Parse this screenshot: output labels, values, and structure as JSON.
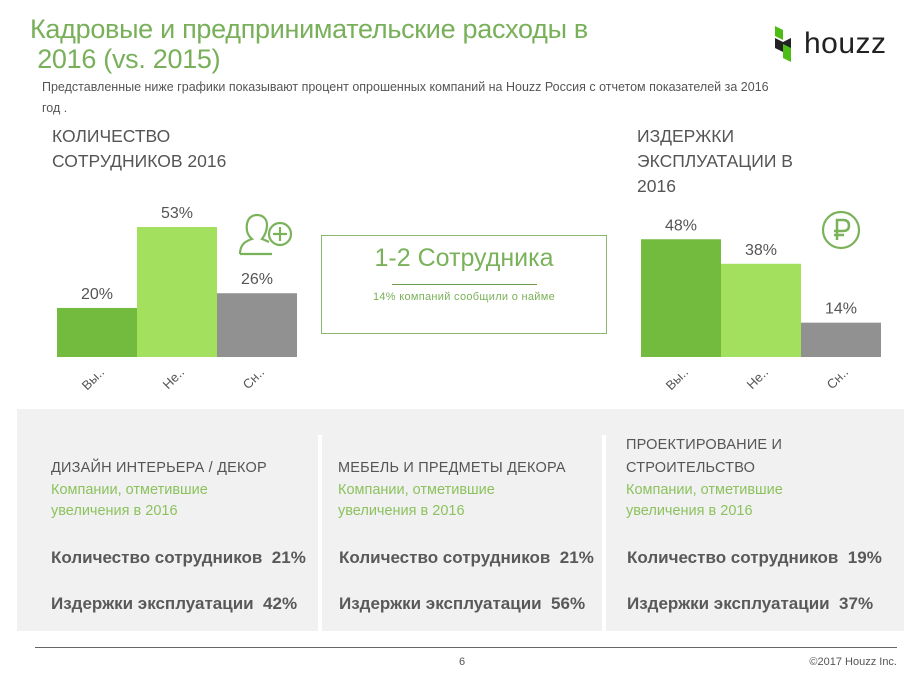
{
  "header": {
    "title_line1": "Кадровые и предпринимательские расходы в",
    "title_line2": " 2016 (vs. 2015)",
    "subtitle": "Представленные ниже графики показывают процент опрошенных компаний на Houzz Россия с отчетом показателей за 2016 год .",
    "logo_text": "houzz"
  },
  "chart_data": [
    {
      "type": "bar",
      "title": "КОЛИЧЕСТВО СОТРУДНИКОВ 2016",
      "categories": [
        "Вы..",
        "Не..",
        "Сн.."
      ],
      "values": [
        20,
        53,
        26
      ],
      "value_labels": [
        "20%",
        "53%",
        "26%"
      ],
      "colors": [
        "#72bb3e",
        "#a3e05d",
        "#919191"
      ],
      "icon": "user-add-icon",
      "ylim": [
        0,
        53
      ]
    },
    {
      "type": "bar",
      "title": "ИЗДЕРЖКИ ЭКСПЛУАТАЦИИ В 2016",
      "categories": [
        "Вы..",
        "Не..",
        "Сн.."
      ],
      "values": [
        48,
        38,
        14
      ],
      "value_labels": [
        "48%",
        "38%",
        "14%"
      ],
      "colors": [
        "#72bb3e",
        "#a3e05d",
        "#919191"
      ],
      "icon": "ruble-icon",
      "ylim": [
        0,
        53
      ]
    }
  ],
  "callout": {
    "main": "1-2 Сотрудника",
    "sub": "14% компаний сообщили о найме"
  },
  "segments": [
    {
      "title": "ДИЗАЙН ИНТЕРЬЕРА / ДЕКОР",
      "sub1": "Компании, отметившие",
      "sub2": "увеличения в 2016",
      "row1": "Количество сотрудников  21%",
      "row2": "Издержки эксплуатации  42%"
    },
    {
      "title": "МЕБЕЛЬ И ПРЕДМЕТЫ ДЕКОРА",
      "sub1": "Компании, отметившие",
      "sub2": "увеличения в 2016",
      "row1": "Количество сотрудников  21%",
      "row2": "Издержки эксплуатации  56%"
    },
    {
      "title": "ПРОЕКТИРОВАНИЕ И СТРОИТЕЛЬСТВО",
      "sub1": "Компании, отметившие",
      "sub2": "увеличения в 2016",
      "row1": "Количество сотрудников  19%",
      "row2": "Издержки эксплуатации  37%"
    }
  ],
  "footer": {
    "page": "6",
    "copyright": "©2017 Houzz Inc."
  },
  "colors": {
    "accent": "#78b05a",
    "panel": "#f1f1f1"
  }
}
